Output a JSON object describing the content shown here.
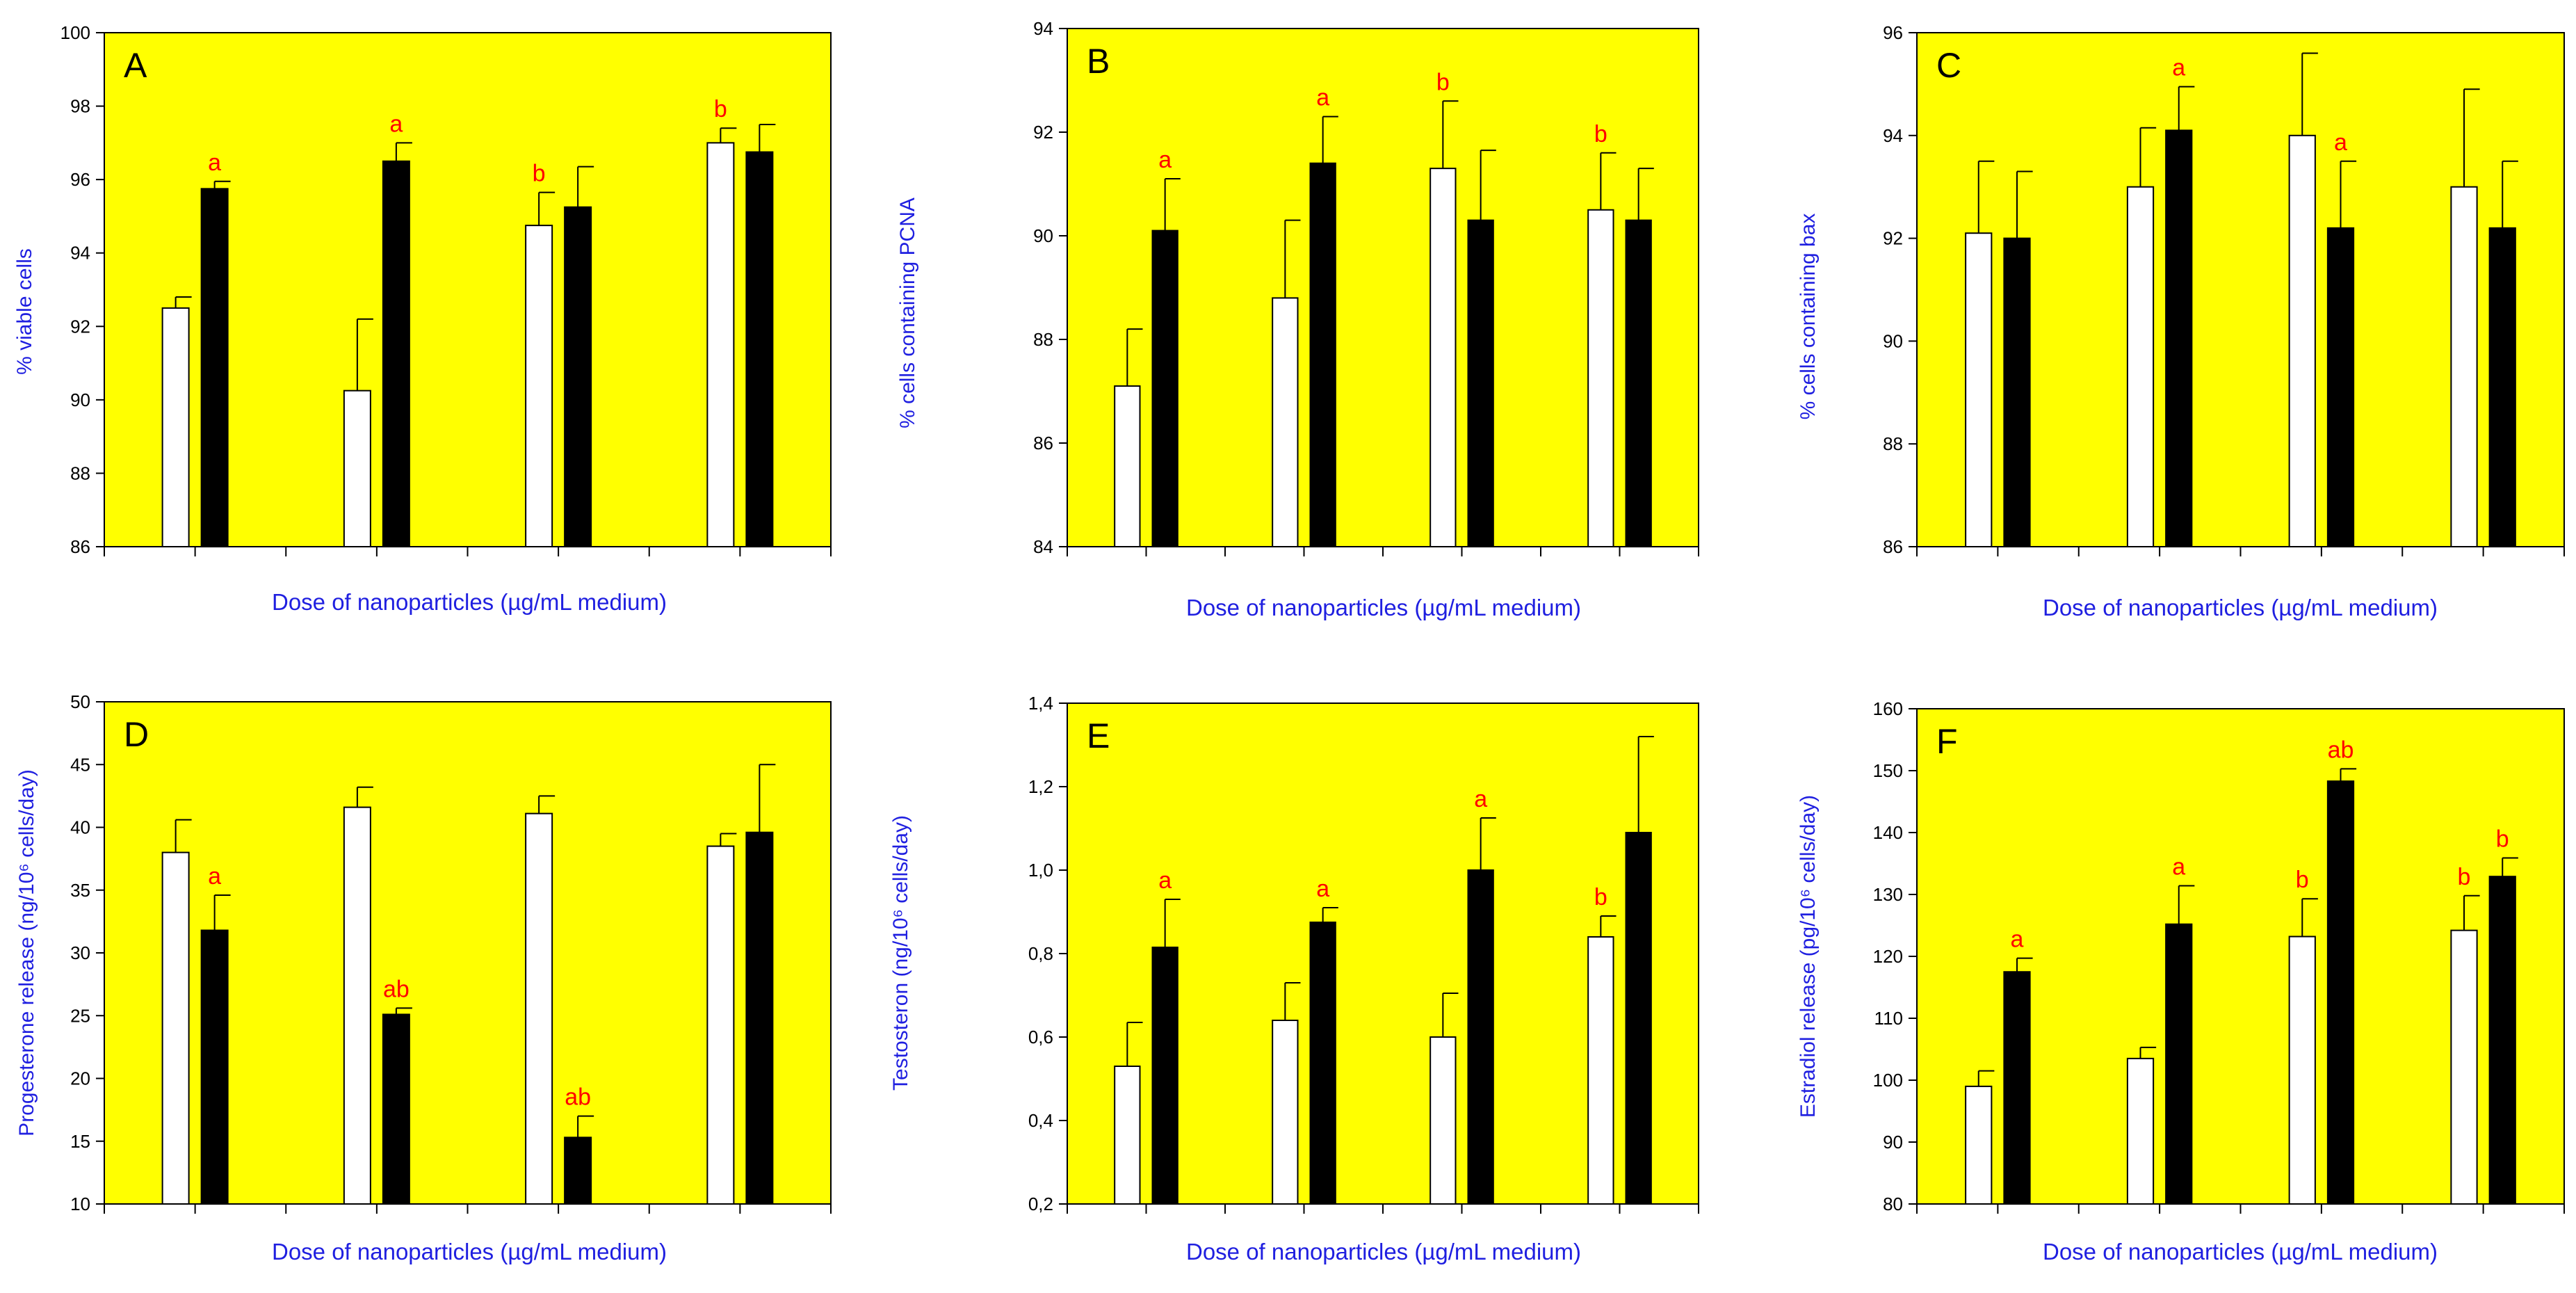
{
  "figure": {
    "colors": {
      "plot_bg": "#FFFF00",
      "axis": "#000000",
      "label_blue": "#1F1FE0",
      "sig_red": "#FF0000",
      "white_bar": "#FFFFFF",
      "black_bar": "#000000"
    }
  },
  "chart_data": [
    {
      "id": "A",
      "type": "bar",
      "panel_letter": "A",
      "xlabel": "Dose of nanoparticles (µg/mL medium)",
      "ylabel": "% viable cells",
      "ylim": [
        86,
        100
      ],
      "yticks": [
        86,
        88,
        90,
        92,
        94,
        96,
        98,
        100
      ],
      "tick_labels": [
        "86",
        "88",
        "90",
        "92",
        "94",
        "96",
        "98",
        "100"
      ],
      "series": [
        {
          "name": "white",
          "values": [
            92.5,
            90.25,
            94.75,
            97.0
          ],
          "errors": [
            0.3,
            1.95,
            0.9,
            0.4
          ],
          "sig": [
            "",
            "",
            "b",
            "b"
          ]
        },
        {
          "name": "black",
          "values": [
            95.75,
            96.5,
            95.25,
            96.75
          ],
          "errors": [
            0.2,
            0.5,
            1.1,
            0.75
          ],
          "sig": [
            "a",
            "a",
            "",
            ""
          ]
        }
      ]
    },
    {
      "id": "B",
      "type": "bar",
      "panel_letter": "B",
      "xlabel": "Dose of nanoparticles (µg/mL medium)",
      "ylabel": "% cells containing PCNA",
      "ylim": [
        84,
        94
      ],
      "yticks": [
        84,
        86,
        88,
        90,
        92,
        94
      ],
      "tick_labels": [
        "84",
        "86",
        "88",
        "90",
        "92",
        "94"
      ],
      "series": [
        {
          "name": "white",
          "values": [
            87.1,
            88.8,
            91.3,
            90.5
          ],
          "errors": [
            1.1,
            1.5,
            1.3,
            1.1
          ],
          "sig": [
            "",
            "",
            "b",
            "b"
          ]
        },
        {
          "name": "black",
          "values": [
            90.1,
            91.4,
            90.3,
            90.3
          ],
          "errors": [
            1.0,
            0.9,
            1.35,
            1.0
          ],
          "sig": [
            "a",
            "a",
            "",
            ""
          ]
        }
      ]
    },
    {
      "id": "C",
      "type": "bar",
      "panel_letter": "C",
      "xlabel": "Dose of nanoparticles (µg/mL medium)",
      "ylabel": "% cells containing bax",
      "ylim": [
        86,
        96
      ],
      "yticks": [
        86,
        88,
        90,
        92,
        94,
        96
      ],
      "tick_labels": [
        "86",
        "88",
        "90",
        "92",
        "94",
        "96"
      ],
      "series": [
        {
          "name": "white",
          "values": [
            92.1,
            93.0,
            94.0,
            93.0
          ],
          "errors": [
            1.4,
            1.15,
            1.6,
            1.9
          ],
          "sig": [
            "",
            "",
            "",
            ""
          ]
        },
        {
          "name": "black",
          "values": [
            92.0,
            94.1,
            92.2,
            92.2
          ],
          "errors": [
            1.3,
            0.85,
            1.3,
            1.3
          ],
          "sig": [
            "",
            "a",
            "a",
            ""
          ]
        }
      ]
    },
    {
      "id": "D",
      "type": "bar",
      "panel_letter": "D",
      "xlabel": "Dose of nanoparticles (µg/mL medium)",
      "ylabel": "Progesterone release (ng/10⁶ cells/day)",
      "ylim": [
        10,
        50
      ],
      "yticks": [
        10,
        15,
        20,
        25,
        30,
        35,
        40,
        45,
        50
      ],
      "tick_labels": [
        "10",
        "15",
        "20",
        "25",
        "30",
        "35",
        "40",
        "45",
        "50"
      ],
      "series": [
        {
          "name": "white",
          "values": [
            38.0,
            41.6,
            41.1,
            38.5
          ],
          "errors": [
            2.6,
            1.6,
            1.4,
            1.0
          ],
          "sig": [
            "",
            "",
            "",
            ""
          ]
        },
        {
          "name": "black",
          "values": [
            31.8,
            25.1,
            15.3,
            39.6
          ],
          "errors": [
            2.8,
            0.5,
            1.7,
            5.4
          ],
          "sig": [
            "a",
            "ab",
            "ab",
            ""
          ]
        }
      ]
    },
    {
      "id": "E",
      "type": "bar",
      "panel_letter": "E",
      "xlabel": "Dose of nanoparticles (µg/mL medium)",
      "ylabel": "Testosteron (ng/10⁶ cells/day)",
      "ylim": [
        0.2,
        1.4
      ],
      "yticks": [
        0.2,
        0.4,
        0.6,
        0.8,
        1.0,
        1.2,
        1.4
      ],
      "tick_labels": [
        "0,2",
        "0,4",
        "0,6",
        "0,8",
        "1,0",
        "1,2",
        "1,4"
      ],
      "series": [
        {
          "name": "white",
          "values": [
            0.53,
            0.64,
            0.6,
            0.84
          ],
          "errors": [
            0.105,
            0.09,
            0.105,
            0.05
          ],
          "sig": [
            "",
            "",
            "",
            "b"
          ]
        },
        {
          "name": "black",
          "values": [
            0.815,
            0.875,
            1.0,
            1.09
          ],
          "errors": [
            0.115,
            0.035,
            0.125,
            0.23
          ],
          "sig": [
            "a",
            "a",
            "a",
            ""
          ]
        }
      ]
    },
    {
      "id": "F",
      "type": "bar",
      "panel_letter": "F",
      "xlabel": "Dose of nanoparticles (µg/mL medium)",
      "ylabel": "Estradiol release (pg/10⁶ cells/day)",
      "ylim": [
        80,
        160
      ],
      "yticks": [
        80,
        90,
        100,
        110,
        120,
        130,
        140,
        150,
        160
      ],
      "tick_labels": [
        "80",
        "90",
        "100",
        "110",
        "120",
        "130",
        "140",
        "150",
        "160"
      ],
      "series": [
        {
          "name": "white",
          "values": [
            99.0,
            103.5,
            123.2,
            124.2
          ],
          "errors": [
            2.5,
            1.8,
            6.1,
            5.6
          ],
          "sig": [
            "",
            "",
            "b",
            "b"
          ]
        },
        {
          "name": "black",
          "values": [
            117.5,
            125.2,
            148.3,
            132.9
          ],
          "errors": [
            2.2,
            6.2,
            2.0,
            3.0
          ],
          "sig": [
            "a",
            "a",
            "ab",
            "b"
          ]
        }
      ]
    }
  ]
}
